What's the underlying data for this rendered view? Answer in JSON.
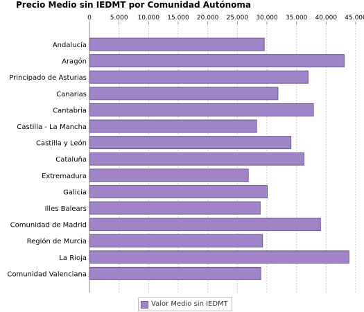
{
  "colors": {
    "bar": "#a183c8",
    "bar_stroke": "#6f5a92",
    "grid": "#c8c8c8",
    "axis": "#888888"
  },
  "chart_data": {
    "type": "bar",
    "orientation": "horizontal",
    "title": "Precio Medio sin IEDMT por Comunidad Autónoma",
    "xlabel": "",
    "ylabel": "",
    "xlim": [
      0,
      45000
    ],
    "grid": true,
    "legend_position": "bottom",
    "ticks": [
      {
        "value": 0,
        "label": "0"
      },
      {
        "value": 5000,
        "label": "5.000"
      },
      {
        "value": 10000,
        "label": "10.000"
      },
      {
        "value": 15000,
        "label": "15.000"
      },
      {
        "value": 20000,
        "label": "20.000"
      },
      {
        "value": 25000,
        "label": "25.000"
      },
      {
        "value": 30000,
        "label": "30.000"
      },
      {
        "value": 35000,
        "label": "35.000"
      },
      {
        "value": 40000,
        "label": "40.000"
      },
      {
        "value": 45000,
        "label": "45.000"
      }
    ],
    "categories": [
      "Andalucía",
      "Aragón",
      "Principado de Asturias",
      "Canarias",
      "Cantabria",
      "Castilla - La Mancha",
      "Castilla y León",
      "Cataluña",
      "Extremadura",
      "Galicia",
      "Illes Balears",
      "Comunidad de Madrid",
      "Región de Murcia",
      "La Rioja",
      "Comunidad Valenciana"
    ],
    "series": [
      {
        "name": "Valor Medio sin IEDMT",
        "values": [
          29500,
          43000,
          36900,
          31800,
          37800,
          28200,
          34000,
          36200,
          26800,
          30000,
          28800,
          39000,
          29200,
          43800,
          28900
        ]
      }
    ]
  }
}
